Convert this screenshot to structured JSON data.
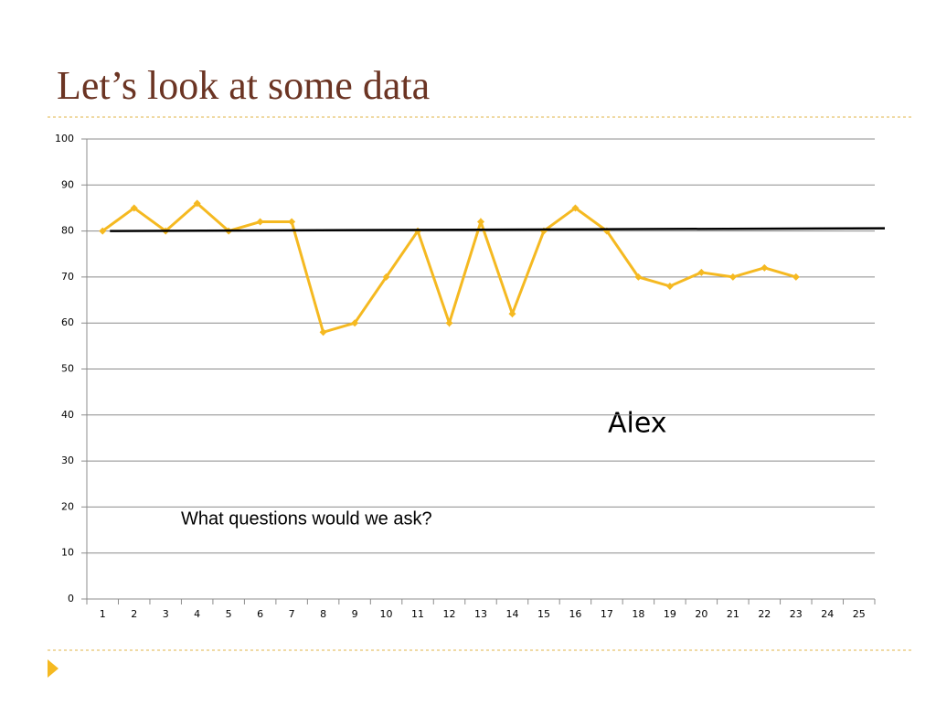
{
  "title": "Let’s look at some data",
  "chart_data": {
    "type": "line",
    "categories": [
      "1",
      "2",
      "3",
      "4",
      "5",
      "6",
      "7",
      "8",
      "9",
      "10",
      "11",
      "12",
      "13",
      "14",
      "15",
      "16",
      "17",
      "18",
      "19",
      "20",
      "21",
      "22",
      "23",
      "24",
      "25"
    ],
    "series": [
      {
        "color": "#f5b921",
        "values": [
          80,
          85,
          80,
          86,
          80,
          82,
          82,
          58,
          60,
          70,
          80,
          60,
          82,
          62,
          80,
          85,
          80,
          70,
          68,
          71,
          70,
          72,
          70,
          null,
          null
        ]
      }
    ],
    "reference_line": {
      "color": "#000000",
      "values": [
        80,
        80.6
      ]
    },
    "ylim": [
      0,
      100
    ],
    "yticks": [
      0,
      10,
      20,
      30,
      40,
      50,
      60,
      70,
      80,
      90,
      100
    ],
    "grid": true,
    "annotations": [
      "Alex",
      "What questions would we ask?"
    ]
  }
}
